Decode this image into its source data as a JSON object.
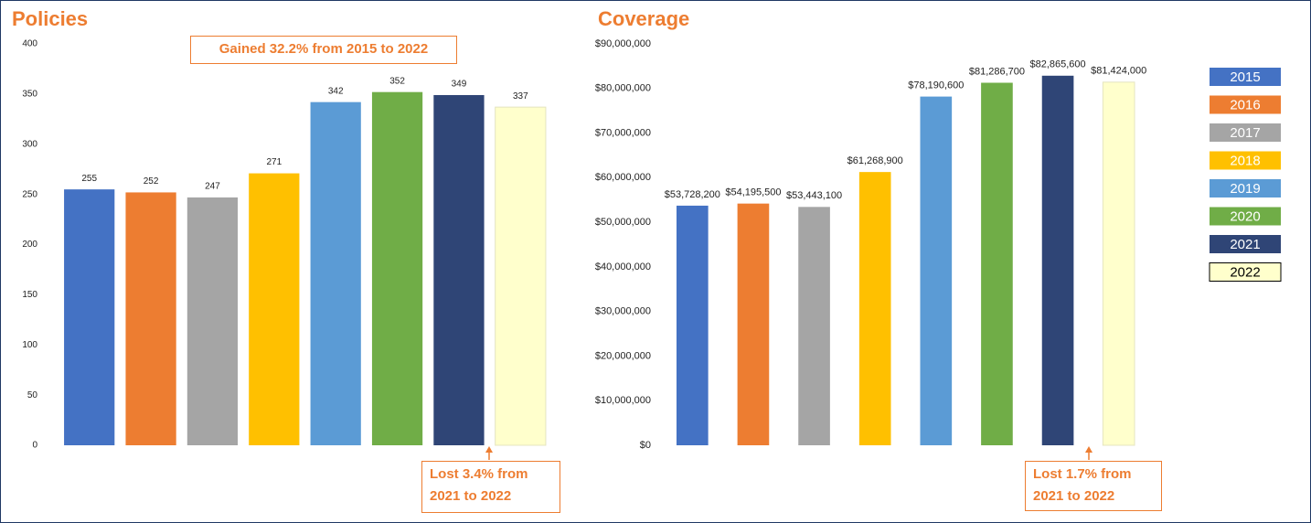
{
  "chart_data": [
    {
      "type": "bar",
      "title": "Policies",
      "values": [
        255,
        252,
        247,
        271,
        342,
        352,
        349,
        337
      ],
      "colors": [
        "#4472c4",
        "#ed7d31",
        "#a5a5a5",
        "#ffc000",
        "#5b9bd5",
        "#70ad47",
        "#2f4576",
        "#ffffcc"
      ],
      "ylim": [
        0,
        400
      ],
      "yticks": [
        0,
        50,
        100,
        150,
        200,
        250,
        300,
        350,
        400
      ],
      "grid": false,
      "annotations": [
        "Gained 32.2% from 2015 to 2022",
        "Lost 3.4% from 2021 to 2022"
      ]
    },
    {
      "type": "bar",
      "title": "Coverage",
      "categories": [
        "2015",
        "2016",
        "2017",
        "2018",
        "2019",
        "2020",
        "2021",
        "2022"
      ],
      "values": [
        53728200,
        54195500,
        53443100,
        61268900,
        78190600,
        81286700,
        82865600,
        81424000
      ],
      "value_labels": [
        "$53,728,200",
        "$54,195,500",
        "$53,443,100",
        "$61,268,900",
        "$78,190,600",
        "$81,286,700",
        "$82,865,600",
        "$81,424,000"
      ],
      "colors": [
        "#4472c4",
        "#ed7d31",
        "#a5a5a5",
        "#ffc000",
        "#5b9bd5",
        "#70ad47",
        "#2f4576",
        "#ffffcc"
      ],
      "ylim": [
        0,
        90000000
      ],
      "yticks": [
        {
          "value": 0,
          "label": "$0"
        },
        {
          "value": 10000000,
          "label": "$10,000,000"
        },
        {
          "value": 20000000,
          "label": "$20,000,000"
        },
        {
          "value": 30000000,
          "label": "$30,000,000"
        },
        {
          "value": 40000000,
          "label": "$40,000,000"
        },
        {
          "value": 50000000,
          "label": "$50,000,000"
        },
        {
          "value": 60000000,
          "label": "$60,000,000"
        },
        {
          "value": 70000000,
          "label": "$70,000,000"
        },
        {
          "value": 80000000,
          "label": "$80,000,000"
        },
        {
          "value": 90000000,
          "label": "$90,000,000"
        }
      ],
      "grid": false,
      "legend": "right",
      "annotations": [
        "Lost 1.7% from 2021 to 2022"
      ]
    }
  ]
}
